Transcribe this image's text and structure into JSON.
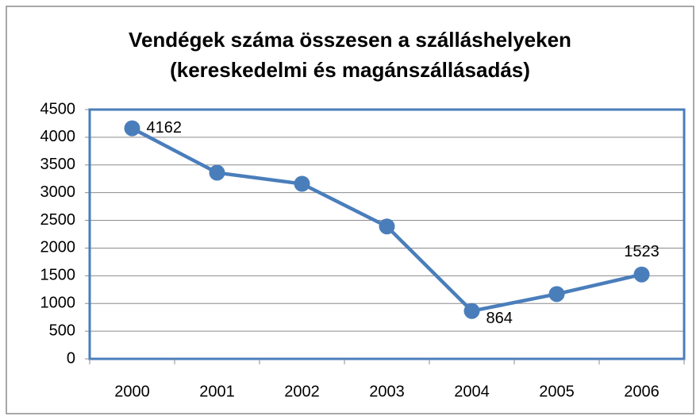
{
  "chart_data": {
    "type": "line",
    "title": [
      "Vendégek száma összesen a szálláshelyeken",
      "(kereskedelmi és magánszállásadás)"
    ],
    "categories": [
      "2000",
      "2001",
      "2002",
      "2003",
      "2004",
      "2005",
      "2006"
    ],
    "values": [
      4162,
      3360,
      3160,
      2390,
      864,
      1170,
      1523
    ],
    "value_labels": [
      "4162",
      null,
      null,
      null,
      "864",
      null,
      "1523"
    ],
    "color": "#4a7ebb",
    "ylim": [
      0,
      4500
    ],
    "yticks": [
      0,
      500,
      1000,
      1500,
      2000,
      2500,
      3000,
      3500,
      4000,
      4500
    ],
    "grid": true
  }
}
